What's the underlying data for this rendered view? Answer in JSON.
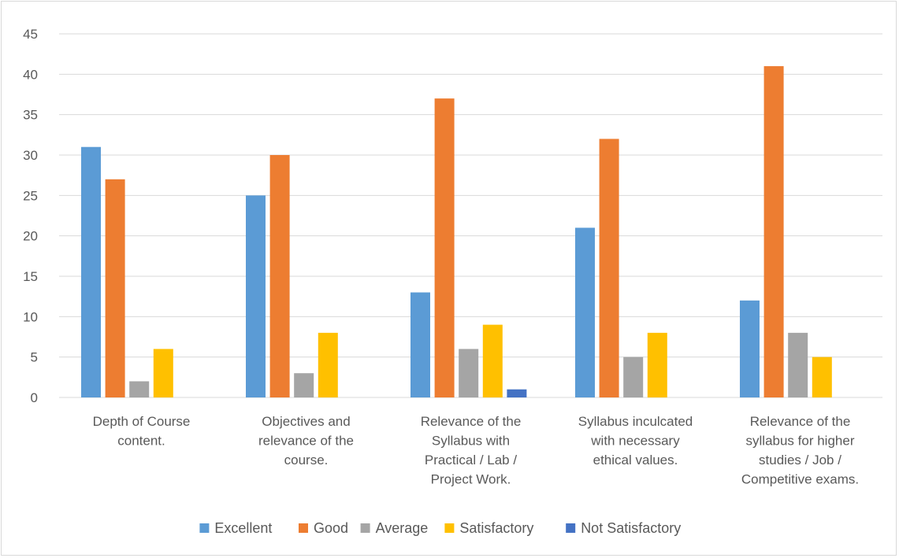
{
  "chart_data": {
    "type": "bar",
    "categories": [
      [
        "Depth of Course",
        "content."
      ],
      [
        "Objectives and",
        "relevance of the",
        "course."
      ],
      [
        "Relevance of the",
        "Syllabus with",
        "Practical / Lab /",
        "Project Work."
      ],
      [
        "Syllabus inculcated",
        "with necessary",
        "ethical values."
      ],
      [
        "Relevance of the",
        "syllabus for higher",
        "studies / Job /",
        "Competitive exams."
      ]
    ],
    "series": [
      {
        "name": "Excellent",
        "color": "#5b9bd5",
        "values": [
          31,
          25,
          13,
          21,
          12
        ]
      },
      {
        "name": "Good",
        "color": "#ed7d31",
        "values": [
          27,
          30,
          37,
          32,
          41
        ]
      },
      {
        "name": "Average",
        "color": "#a5a5a5",
        "values": [
          2,
          3,
          6,
          5,
          8
        ]
      },
      {
        "name": "Satisfactory",
        "color": "#ffc000",
        "values": [
          6,
          8,
          9,
          8,
          5
        ]
      },
      {
        "name": "Not Satisfactory",
        "color": "#4472c4",
        "values": [
          0,
          0,
          1,
          0,
          0
        ]
      }
    ],
    "ylim": [
      0,
      45
    ],
    "yticks": [
      0,
      5,
      10,
      15,
      20,
      25,
      30,
      35,
      40,
      45
    ],
    "grid": true,
    "legend_position": "bottom"
  }
}
